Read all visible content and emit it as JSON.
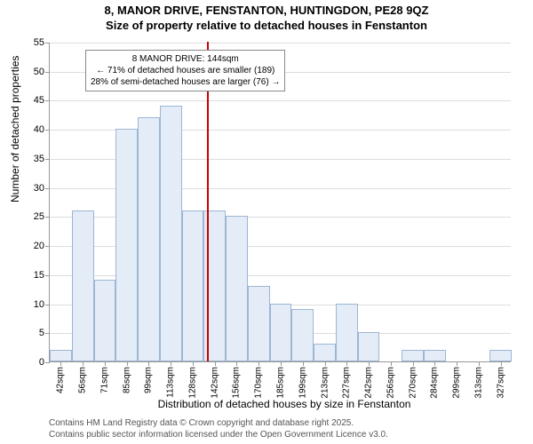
{
  "title": {
    "line1": "8, MANOR DRIVE, FENSTANTON, HUNTINGDON, PE28 9QZ",
    "line2": "Size of property relative to detached houses in Fenstanton"
  },
  "chart": {
    "type": "histogram",
    "ylim": [
      0,
      55
    ],
    "ytick_step": 5,
    "y_ticks": [
      0,
      5,
      10,
      15,
      20,
      25,
      30,
      35,
      40,
      45,
      50,
      55
    ],
    "ylabel": "Number of detached properties",
    "xlabel": "Distribution of detached houses by size in Fenstanton",
    "background_color": "#ffffff",
    "grid_color": "#dddddd",
    "axis_color": "#999999",
    "bar_fill": "#e4edf7",
    "bar_border": "#9db6d4",
    "marker_color": "#cc0000",
    "bars": [
      {
        "label": "42sqm",
        "value": 2
      },
      {
        "label": "56sqm",
        "value": 26
      },
      {
        "label": "71sqm",
        "value": 14
      },
      {
        "label": "85sqm",
        "value": 40
      },
      {
        "label": "99sqm",
        "value": 42
      },
      {
        "label": "113sqm",
        "value": 44
      },
      {
        "label": "128sqm",
        "value": 26
      },
      {
        "label": "142sqm",
        "value": 26
      },
      {
        "label": "156sqm",
        "value": 25
      },
      {
        "label": "170sqm",
        "value": 13
      },
      {
        "label": "185sqm",
        "value": 10
      },
      {
        "label": "199sqm",
        "value": 9
      },
      {
        "label": "213sqm",
        "value": 3
      },
      {
        "label": "227sqm",
        "value": 10
      },
      {
        "label": "242sqm",
        "value": 5
      },
      {
        "label": "256sqm",
        "value": 0
      },
      {
        "label": "270sqm",
        "value": 2
      },
      {
        "label": "284sqm",
        "value": 2
      },
      {
        "label": "299sqm",
        "value": 0
      },
      {
        "label": "313sqm",
        "value": 0
      },
      {
        "label": "327sqm",
        "value": 2
      }
    ],
    "marker_at_index": 7,
    "annotation": {
      "line1": "8 MANOR DRIVE: 144sqm",
      "line2": "← 71% of detached houses are smaller (189)",
      "line3": "28% of semi-detached houses are larger (76) →"
    }
  },
  "footer": {
    "line1": "Contains HM Land Registry data © Crown copyright and database right 2025.",
    "line2": "Contains public sector information licensed under the Open Government Licence v3.0."
  }
}
